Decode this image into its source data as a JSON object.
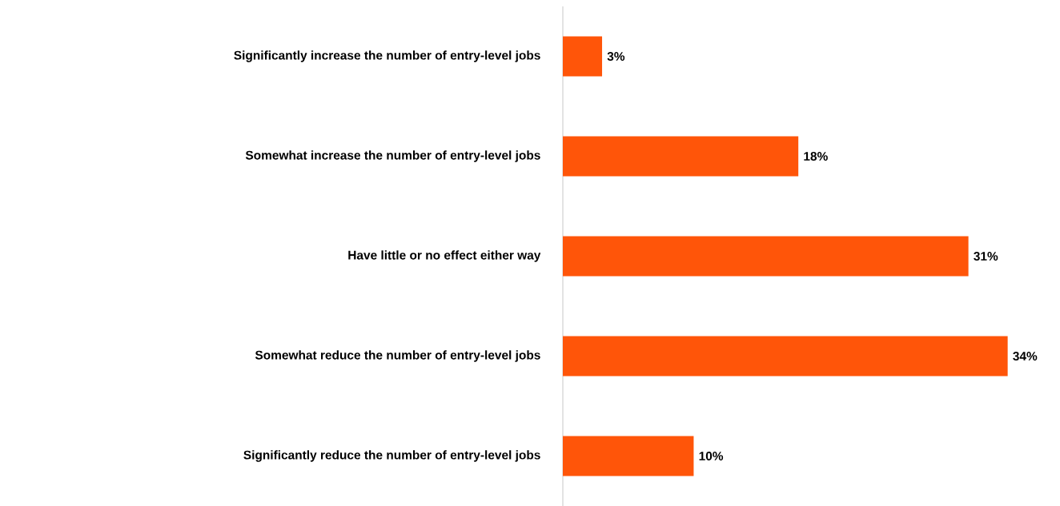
{
  "chart_data": {
    "type": "bar",
    "orientation": "horizontal",
    "categories": [
      "Significantly increase the number of entry-level jobs",
      "Somewhat increase  the number of entry-level jobs",
      "Have little or no effect either way",
      "Somewhat reduce the number of entry-level jobs",
      "Significantly reduce the number of entry-level jobs"
    ],
    "values": [
      3,
      18,
      31,
      34,
      10
    ],
    "value_labels": [
      "3%",
      "18%",
      "31%",
      "34%",
      "10%"
    ],
    "color": "#ff5509"
  }
}
